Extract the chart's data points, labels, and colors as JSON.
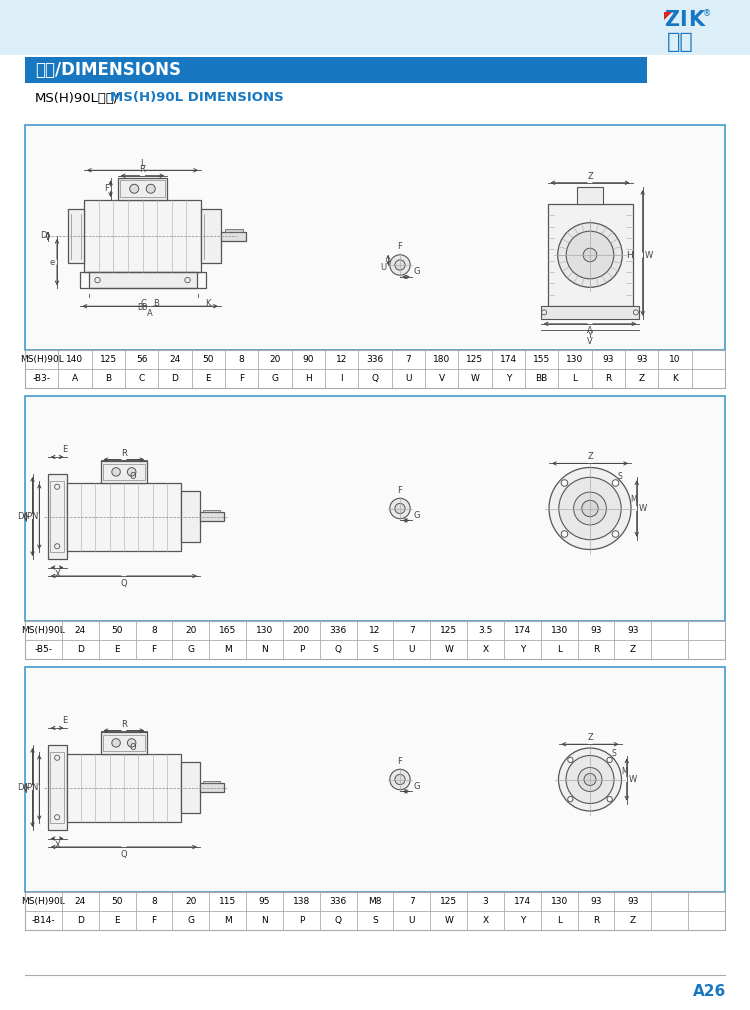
{
  "title_bar": "尺寸/DIMENSIONS",
  "subtitle_cn": "MS(H)90L尺寸/",
  "subtitle_en": "MS(H)90L DIMENSIONS",
  "brand_cn": "紫光",
  "page_num": "A26",
  "bg_color": "#ffffff",
  "header_bg": "#dceef8",
  "title_bar_color": "#1777c0",
  "title_text_color": "#ffffff",
  "section_border": "#4499cc",
  "dim_line_color": "#444444",
  "motor_line_color": "#555555",
  "table_line_color": "#aaaaaa",
  "table1": {
    "model": "MS(H)90L",
    "mount": "-B3-",
    "values": [
      "140",
      "125",
      "56",
      "24",
      "50",
      "8",
      "20",
      "90",
      "12",
      "336",
      "7",
      "180",
      "125",
      "174",
      "155",
      "130",
      "93",
      "93",
      "10"
    ],
    "labels": [
      "A",
      "B",
      "C",
      "D",
      "E",
      "F",
      "G",
      "H",
      "I",
      "Q",
      "U",
      "V",
      "W",
      "Y",
      "BB",
      "L",
      "R",
      "Z",
      "K"
    ]
  },
  "table2": {
    "model": "MS(H)90L",
    "mount": "-B5-",
    "values": [
      "24",
      "50",
      "8",
      "20",
      "165",
      "130",
      "200",
      "336",
      "12",
      "7",
      "125",
      "3.5",
      "174",
      "130",
      "93",
      "93",
      "",
      "",
      ""
    ],
    "labels": [
      "D",
      "E",
      "F",
      "G",
      "M",
      "N",
      "P",
      "Q",
      "S",
      "U",
      "W",
      "X",
      "Y",
      "L",
      "R",
      "Z",
      "",
      "",
      ""
    ]
  },
  "table3": {
    "model": "MS(H)90L",
    "mount": "-B14-",
    "values": [
      "24",
      "50",
      "8",
      "20",
      "115",
      "95",
      "138",
      "336",
      "M8",
      "7",
      "125",
      "3",
      "174",
      "130",
      "93",
      "93",
      "",
      "",
      ""
    ],
    "labels": [
      "D",
      "E",
      "F",
      "G",
      "M",
      "N",
      "P",
      "Q",
      "S",
      "U",
      "W",
      "X",
      "Y",
      "L",
      "R",
      "Z",
      "",
      "",
      ""
    ]
  }
}
